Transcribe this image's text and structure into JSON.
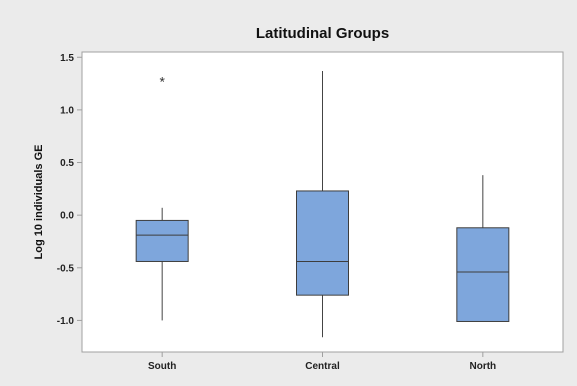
{
  "chart_data": {
    "type": "boxplot",
    "title": "Latitudinal Groups",
    "xlabel": "",
    "ylabel": "Log 10 individuals GE",
    "ylim": [
      -1.3,
      1.55
    ],
    "yticks": [
      "1.5",
      "1.0",
      "0.5",
      "0.0",
      "-0.5",
      "-1.0"
    ],
    "categories": [
      "South",
      "Central",
      "North"
    ],
    "boxes": [
      {
        "category": "South",
        "whisker_low": -1.0,
        "q1": -0.44,
        "median": -0.19,
        "q3": -0.05,
        "whisker_high": 0.07,
        "outliers": [
          1.28
        ]
      },
      {
        "category": "Central",
        "whisker_low": -1.16,
        "q1": -0.76,
        "median": -0.44,
        "q3": 0.23,
        "whisker_high": 1.37,
        "outliers": []
      },
      {
        "category": "North",
        "whisker_low": -1.01,
        "q1": -1.01,
        "median": -0.54,
        "q3": -0.12,
        "whisker_high": 0.38,
        "outliers": []
      }
    ],
    "outlier_marker": "*",
    "grid": false,
    "colors": {
      "background": "#ebebeb",
      "plot_background": "#ffffff",
      "box_fill": "#7ea6dc",
      "box_stroke": "#3d3d3d",
      "whisker": "#444444",
      "frame": "#a0a0a0"
    }
  }
}
